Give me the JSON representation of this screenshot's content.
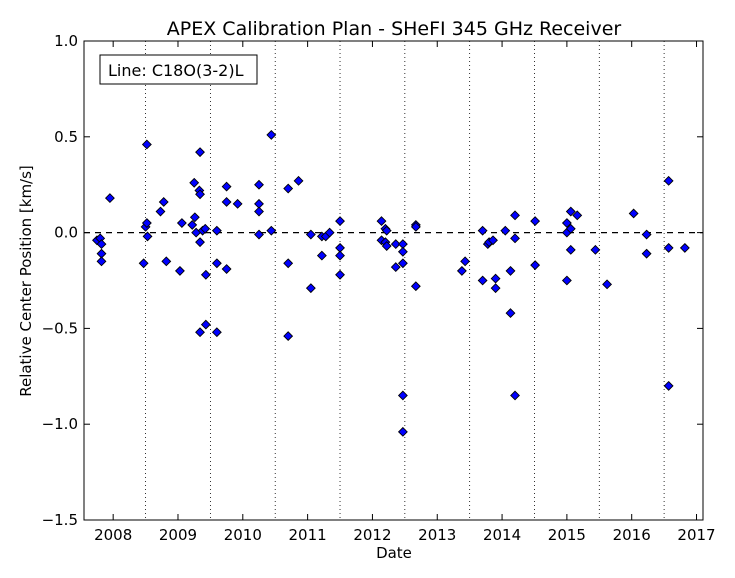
{
  "chart_data": {
    "type": "scatter",
    "title": "APEX Calibration Plan - SHeFI 345 GHz Receiver",
    "xlabel": "Date",
    "ylabel": "Relative Center Position [km/s]",
    "xlim": [
      2007.55,
      2017.1
    ],
    "ylim": [
      -1.5,
      1.0
    ],
    "x_ticks": [
      2008,
      2009,
      2010,
      2011,
      2012,
      2013,
      2014,
      2015,
      2016,
      2017
    ],
    "x_tick_labels": [
      "2008",
      "2009",
      "2010",
      "2011",
      "2012",
      "2013",
      "2014",
      "2015",
      "2016",
      "2017"
    ],
    "y_ticks": [
      1.0,
      0.5,
      0.0,
      -0.5,
      -1.0,
      -1.5
    ],
    "y_tick_labels": [
      "1.0",
      "0.5",
      "0.0",
      "−0.5",
      "−1.0",
      "−1.5"
    ],
    "annotation": "Line: C18O(3-2)L",
    "zero_line": 0.0,
    "vertical_dotted_lines": [
      2008.5,
      2009.5,
      2010.5,
      2011.5,
      2012.5,
      2013.5,
      2014.5,
      2015.5,
      2016.5
    ],
    "marker_color": "#0000ff",
    "marker_edge": "#000000",
    "points": [
      [
        2007.75,
        -0.04
      ],
      [
        2007.8,
        -0.03
      ],
      [
        2007.82,
        -0.06
      ],
      [
        2007.82,
        -0.11
      ],
      [
        2007.82,
        -0.15
      ],
      [
        2007.95,
        0.18
      ],
      [
        2008.47,
        -0.16
      ],
      [
        2008.5,
        0.03
      ],
      [
        2008.52,
        0.46
      ],
      [
        2008.52,
        0.05
      ],
      [
        2008.53,
        -0.02
      ],
      [
        2008.73,
        0.11
      ],
      [
        2008.78,
        0.16
      ],
      [
        2008.82,
        -0.15
      ],
      [
        2009.03,
        -0.2
      ],
      [
        2009.06,
        0.05
      ],
      [
        2009.22,
        0.04
      ],
      [
        2009.25,
        0.26
      ],
      [
        2009.26,
        0.08
      ],
      [
        2009.28,
        0.0
      ],
      [
        2009.33,
        0.22
      ],
      [
        2009.34,
        0.42
      ],
      [
        2009.34,
        0.2
      ],
      [
        2009.34,
        -0.05
      ],
      [
        2009.34,
        -0.52
      ],
      [
        2009.38,
        0.01
      ],
      [
        2009.42,
        0.02
      ],
      [
        2009.43,
        -0.22
      ],
      [
        2009.43,
        -0.48
      ],
      [
        2009.6,
        0.01
      ],
      [
        2009.6,
        -0.16
      ],
      [
        2009.6,
        -0.52
      ],
      [
        2009.75,
        0.24
      ],
      [
        2009.75,
        0.16
      ],
      [
        2009.75,
        -0.19
      ],
      [
        2009.92,
        0.15
      ],
      [
        2010.25,
        0.25
      ],
      [
        2010.25,
        0.15
      ],
      [
        2010.25,
        0.11
      ],
      [
        2010.25,
        -0.01
      ],
      [
        2010.44,
        0.51
      ],
      [
        2010.44,
        0.01
      ],
      [
        2010.7,
        0.23
      ],
      [
        2010.7,
        -0.16
      ],
      [
        2010.7,
        -0.54
      ],
      [
        2010.86,
        0.27
      ],
      [
        2011.05,
        -0.01
      ],
      [
        2011.05,
        -0.29
      ],
      [
        2011.22,
        -0.02
      ],
      [
        2011.22,
        -0.12
      ],
      [
        2011.28,
        -0.02
      ],
      [
        2011.34,
        0.0
      ],
      [
        2011.5,
        0.06
      ],
      [
        2011.5,
        -0.08
      ],
      [
        2011.5,
        -0.12
      ],
      [
        2011.5,
        -0.22
      ],
      [
        2012.14,
        0.06
      ],
      [
        2012.14,
        -0.04
      ],
      [
        2012.2,
        0.02
      ],
      [
        2012.2,
        -0.05
      ],
      [
        2012.22,
        0.01
      ],
      [
        2012.22,
        -0.07
      ],
      [
        2012.36,
        -0.06
      ],
      [
        2012.36,
        -0.18
      ],
      [
        2012.47,
        -0.06
      ],
      [
        2012.47,
        -0.1
      ],
      [
        2012.47,
        -0.16
      ],
      [
        2012.47,
        -0.85
      ],
      [
        2012.47,
        -1.04
      ],
      [
        2012.67,
        0.04
      ],
      [
        2012.67,
        0.03
      ],
      [
        2012.67,
        -0.28
      ],
      [
        2013.38,
        -0.2
      ],
      [
        2013.43,
        -0.15
      ],
      [
        2013.7,
        0.01
      ],
      [
        2013.7,
        -0.25
      ],
      [
        2013.78,
        -0.06
      ],
      [
        2013.8,
        -0.05
      ],
      [
        2013.86,
        -0.04
      ],
      [
        2013.9,
        -0.24
      ],
      [
        2013.9,
        -0.29
      ],
      [
        2014.05,
        0.01
      ],
      [
        2014.13,
        -0.2
      ],
      [
        2014.13,
        -0.42
      ],
      [
        2014.2,
        0.09
      ],
      [
        2014.2,
        -0.03
      ],
      [
        2014.2,
        -0.85
      ],
      [
        2014.51,
        0.06
      ],
      [
        2014.51,
        -0.17
      ],
      [
        2015.0,
        0.05
      ],
      [
        2015.0,
        0.0
      ],
      [
        2015.0,
        -0.25
      ],
      [
        2015.06,
        0.11
      ],
      [
        2015.06,
        0.02
      ],
      [
        2015.06,
        -0.09
      ],
      [
        2015.16,
        0.09
      ],
      [
        2015.44,
        -0.09
      ],
      [
        2015.62,
        -0.27
      ],
      [
        2016.03,
        0.1
      ],
      [
        2016.23,
        -0.01
      ],
      [
        2016.23,
        -0.11
      ],
      [
        2016.57,
        0.27
      ],
      [
        2016.57,
        -0.08
      ],
      [
        2016.57,
        -0.8
      ],
      [
        2016.82,
        -0.08
      ]
    ]
  }
}
